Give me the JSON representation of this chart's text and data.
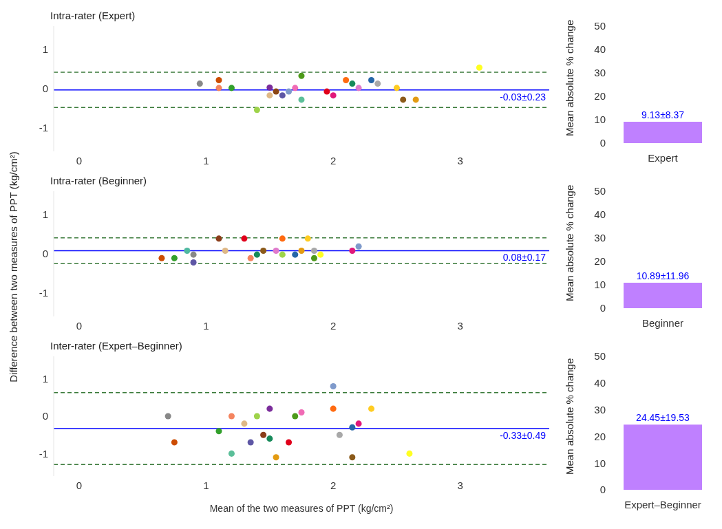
{
  "chart_data": [
    {
      "type": "scatter",
      "title": "Intra-rater (Expert)",
      "marker": "circle",
      "x": [
        0.95,
        1.1,
        1.1,
        1.2,
        1.5,
        1.5,
        1.55,
        1.6,
        1.65,
        1.7,
        1.75,
        1.75,
        1.4,
        1.95,
        2.0,
        2.1,
        2.15,
        2.2,
        2.3,
        2.35,
        2.5,
        2.55,
        2.65,
        3.15
      ],
      "values": [
        0.13,
        0.22,
        0.02,
        0.02,
        0.03,
        -0.17,
        -0.07,
        -0.17,
        -0.07,
        0.02,
        0.33,
        -0.28,
        -0.54,
        -0.07,
        -0.17,
        0.22,
        0.13,
        0.02,
        0.22,
        0.13,
        0.02,
        -0.28,
        -0.28,
        0.54
      ],
      "colors": [
        "#888888",
        "#cc4c02",
        "#f4845f",
        "#33a02c",
        "#7b2d9b",
        "#dfb886",
        "#8b4513",
        "#5e57a5",
        "#7f9acb",
        "#f06bb5",
        "#4d9a1a",
        "#5bbf99",
        "#9ed34a",
        "#e0001b",
        "#e0187a",
        "#ff6a10",
        "#178a5a",
        "#e07acc",
        "#2566a8",
        "#a8a8a8",
        "#ffcc22",
        "#8b5a1a",
        "#e39b12",
        "#ffff22"
      ],
      "xlim": [
        -0.2,
        3.7
      ],
      "xticks": [
        0,
        1,
        2,
        3
      ],
      "ylim": [
        -1.6,
        1.6
      ],
      "yticks": [
        -1,
        0,
        1
      ],
      "ref_lines": [
        {
          "axis": "y",
          "value": -0.03,
          "label": "-0.03±0.23",
          "color": "#0000ff",
          "line_style": "solid"
        },
        {
          "axis": "y",
          "value": 0.42,
          "label": null,
          "color": "#3a7a3a",
          "line_style": "dashed"
        },
        {
          "axis": "y",
          "value": -0.48,
          "label": null,
          "color": "#3a7a3a",
          "line_style": "dashed"
        }
      ]
    },
    {
      "type": "bar",
      "categories": [
        "Expert"
      ],
      "values": [
        9.13
      ],
      "value_labels": [
        "9.13±8.37"
      ],
      "color": "#bf80ff",
      "ylim": [
        0,
        50
      ],
      "yticks": [
        0,
        10,
        20,
        30,
        40,
        50
      ],
      "ylabel": "Mean absolute % change"
    },
    {
      "type": "scatter",
      "title": "Intra-rater (Beginner)",
      "marker": "circle",
      "ylabel": "Difference between two measures of PPT (kg/cm²)",
      "x": [
        0.65,
        0.75,
        0.85,
        0.9,
        0.9,
        1.1,
        1.15,
        1.3,
        1.35,
        1.4,
        1.45,
        1.55,
        1.6,
        1.6,
        1.7,
        1.75,
        1.8,
        1.85,
        1.85,
        1.9,
        2.15,
        2.2
      ],
      "values": [
        -0.11,
        -0.11,
        0.08,
        -0.02,
        -0.22,
        0.39,
        0.08,
        0.39,
        -0.11,
        -0.02,
        0.08,
        0.08,
        0.39,
        -0.02,
        -0.02,
        0.08,
        0.39,
        0.08,
        -0.11,
        -0.02,
        0.08,
        0.19
      ],
      "colors": [
        "#cc4c02",
        "#33a02c",
        "#4fb9a0",
        "#888888",
        "#5e57a5",
        "#8b3d1a",
        "#dfb886",
        "#e0001b",
        "#f4845f",
        "#178a5a",
        "#8b5a1a",
        "#e07acc",
        "#ff6a10",
        "#9ed34a",
        "#2566a8",
        "#e39b12",
        "#ffcc22",
        "#a8a8a8",
        "#4d9a1a",
        "#ffff22",
        "#e0187a",
        "#7f9acb"
      ],
      "xlim": [
        -0.2,
        3.7
      ],
      "xticks": [
        0,
        1,
        2,
        3
      ],
      "ylim": [
        -1.6,
        1.6
      ],
      "yticks": [
        -1,
        0,
        1
      ],
      "ref_lines": [
        {
          "axis": "y",
          "value": 0.08,
          "label": "0.08±0.17",
          "color": "#0000ff",
          "line_style": "solid"
        },
        {
          "axis": "y",
          "value": 0.41,
          "label": null,
          "color": "#3a7a3a",
          "line_style": "dashed"
        },
        {
          "axis": "y",
          "value": -0.25,
          "label": null,
          "color": "#3a7a3a",
          "line_style": "dashed"
        }
      ]
    },
    {
      "type": "bar",
      "categories": [
        "Beginner"
      ],
      "values": [
        10.89
      ],
      "value_labels": [
        "10.89±11.96"
      ],
      "color": "#bf80ff",
      "ylim": [
        0,
        50
      ],
      "yticks": [
        0,
        10,
        20,
        30,
        40,
        50
      ],
      "ylabel": "Mean absolute % change"
    },
    {
      "type": "scatter",
      "title": "Inter-rater (Expert–Beginner)",
      "marker": "circle",
      "xlabel": "Mean of the two measures of PPT (kg/cm²)",
      "x": [
        0.7,
        0.75,
        1.1,
        1.2,
        1.2,
        1.3,
        1.4,
        1.35,
        1.5,
        1.45,
        1.5,
        1.55,
        1.65,
        1.7,
        1.75,
        2.0,
        2.0,
        2.05,
        2.15,
        2.15,
        2.2,
        2.3,
        2.6
      ],
      "values": [
        0.0,
        -0.7,
        -0.4,
        0.0,
        -1.0,
        -0.2,
        0.0,
        -0.7,
        0.2,
        -0.5,
        -0.6,
        -1.1,
        -0.7,
        0.0,
        0.1,
        0.8,
        0.2,
        -0.5,
        -0.3,
        -1.1,
        -0.2,
        0.2,
        -1.0
      ],
      "colors": [
        "#888888",
        "#cc4c02",
        "#33a02c",
        "#f4845f",
        "#5bbf99",
        "#dfb886",
        "#9ed34a",
        "#5e57a5",
        "#7b2d9b",
        "#8b3d1a",
        "#178a5a",
        "#e39b12",
        "#e0001b",
        "#4d9a1a",
        "#f06bb5",
        "#7f9acb",
        "#ff6a10",
        "#a8a8a8",
        "#2566a8",
        "#8b5a1a",
        "#e0187a",
        "#ffcc22",
        "#ffff22"
      ],
      "xlim": [
        -0.2,
        3.7
      ],
      "xticks": [
        0,
        1,
        2,
        3
      ],
      "ylim": [
        -1.6,
        1.6
      ],
      "yticks": [
        -1,
        0,
        1
      ],
      "ref_lines": [
        {
          "axis": "y",
          "value": -0.33,
          "label": "-0.33±0.49",
          "color": "#0000ff",
          "line_style": "solid"
        },
        {
          "axis": "y",
          "value": 0.63,
          "label": null,
          "color": "#3a7a3a",
          "line_style": "dashed"
        },
        {
          "axis": "y",
          "value": -1.29,
          "label": null,
          "color": "#3a7a3a",
          "line_style": "dashed"
        }
      ]
    },
    {
      "type": "bar",
      "categories": [
        "Expert–Beginner"
      ],
      "values": [
        24.45
      ],
      "value_labels": [
        "24.45±19.53"
      ],
      "color": "#bf80ff",
      "ylim": [
        0,
        50
      ],
      "yticks": [
        0,
        10,
        20,
        30,
        40,
        50
      ],
      "ylabel": "Mean absolute % change"
    }
  ]
}
